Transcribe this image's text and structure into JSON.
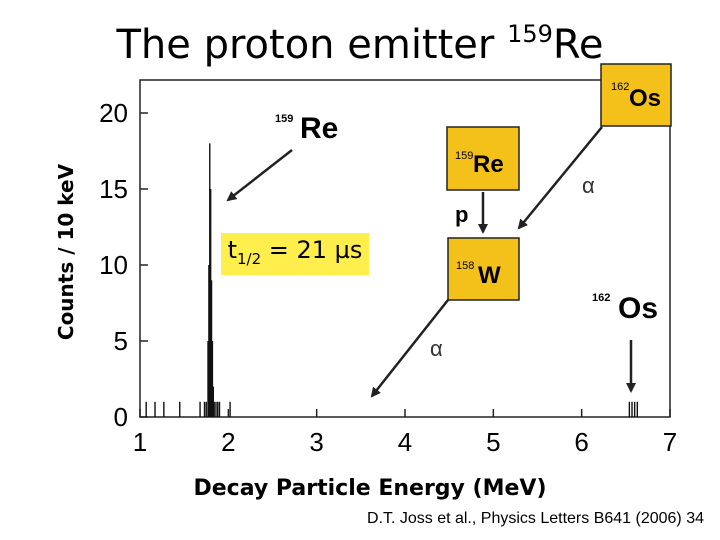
{
  "title": {
    "main": "The proton emitter ",
    "mass": "159",
    "element": "Re"
  },
  "citation": "D.T. Joss et al., Physics Letters B641 (2006) 34",
  "half_life": {
    "prefix": "t",
    "sub": "1/2",
    "rest": " = 21 µs"
  },
  "decay_scheme": {
    "nuclei": [
      {
        "mass": "162",
        "symbol": "Os"
      },
      {
        "mass": "159",
        "symbol": "Re"
      },
      {
        "mass": "158",
        "symbol": "W"
      }
    ],
    "decays": [
      {
        "label": "α"
      },
      {
        "label": "p"
      },
      {
        "label": "α"
      }
    ]
  },
  "colors": {
    "nucleus_box": "#f4c11a",
    "half_life_box": "#ffee4c"
  },
  "chart_data": {
    "type": "bar",
    "xlabel": "Decay Particle Energy (MeV)",
    "ylabel": "Counts  / 10 keV",
    "xlim": [
      1,
      7
    ],
    "ylim": [
      0,
      22
    ],
    "xticks": [
      "1",
      "2",
      "3",
      "4",
      "5",
      "6",
      "7"
    ],
    "yticks": [
      "0",
      "5",
      "10",
      "15",
      "20"
    ],
    "bin_width_mev": 0.01,
    "x": [
      1.07,
      1.17,
      1.27,
      1.45,
      1.68,
      1.73,
      1.75,
      1.77,
      1.78,
      1.79,
      1.8,
      1.81,
      1.82,
      1.83,
      1.84,
      1.86,
      1.88,
      1.9,
      2.02,
      6.54,
      6.57,
      6.6,
      6.63
    ],
    "values": [
      1,
      1,
      1,
      1,
      1,
      1,
      1,
      5,
      10,
      18,
      15,
      9,
      5,
      2,
      1,
      1,
      1,
      1,
      1,
      1,
      1,
      1,
      1
    ],
    "annotations": [
      {
        "mass": "159",
        "symbol": "Re",
        "points_to_x": 1.98
      },
      {
        "mass": "162",
        "symbol": "Os",
        "points_to_x": 6.61
      }
    ]
  }
}
